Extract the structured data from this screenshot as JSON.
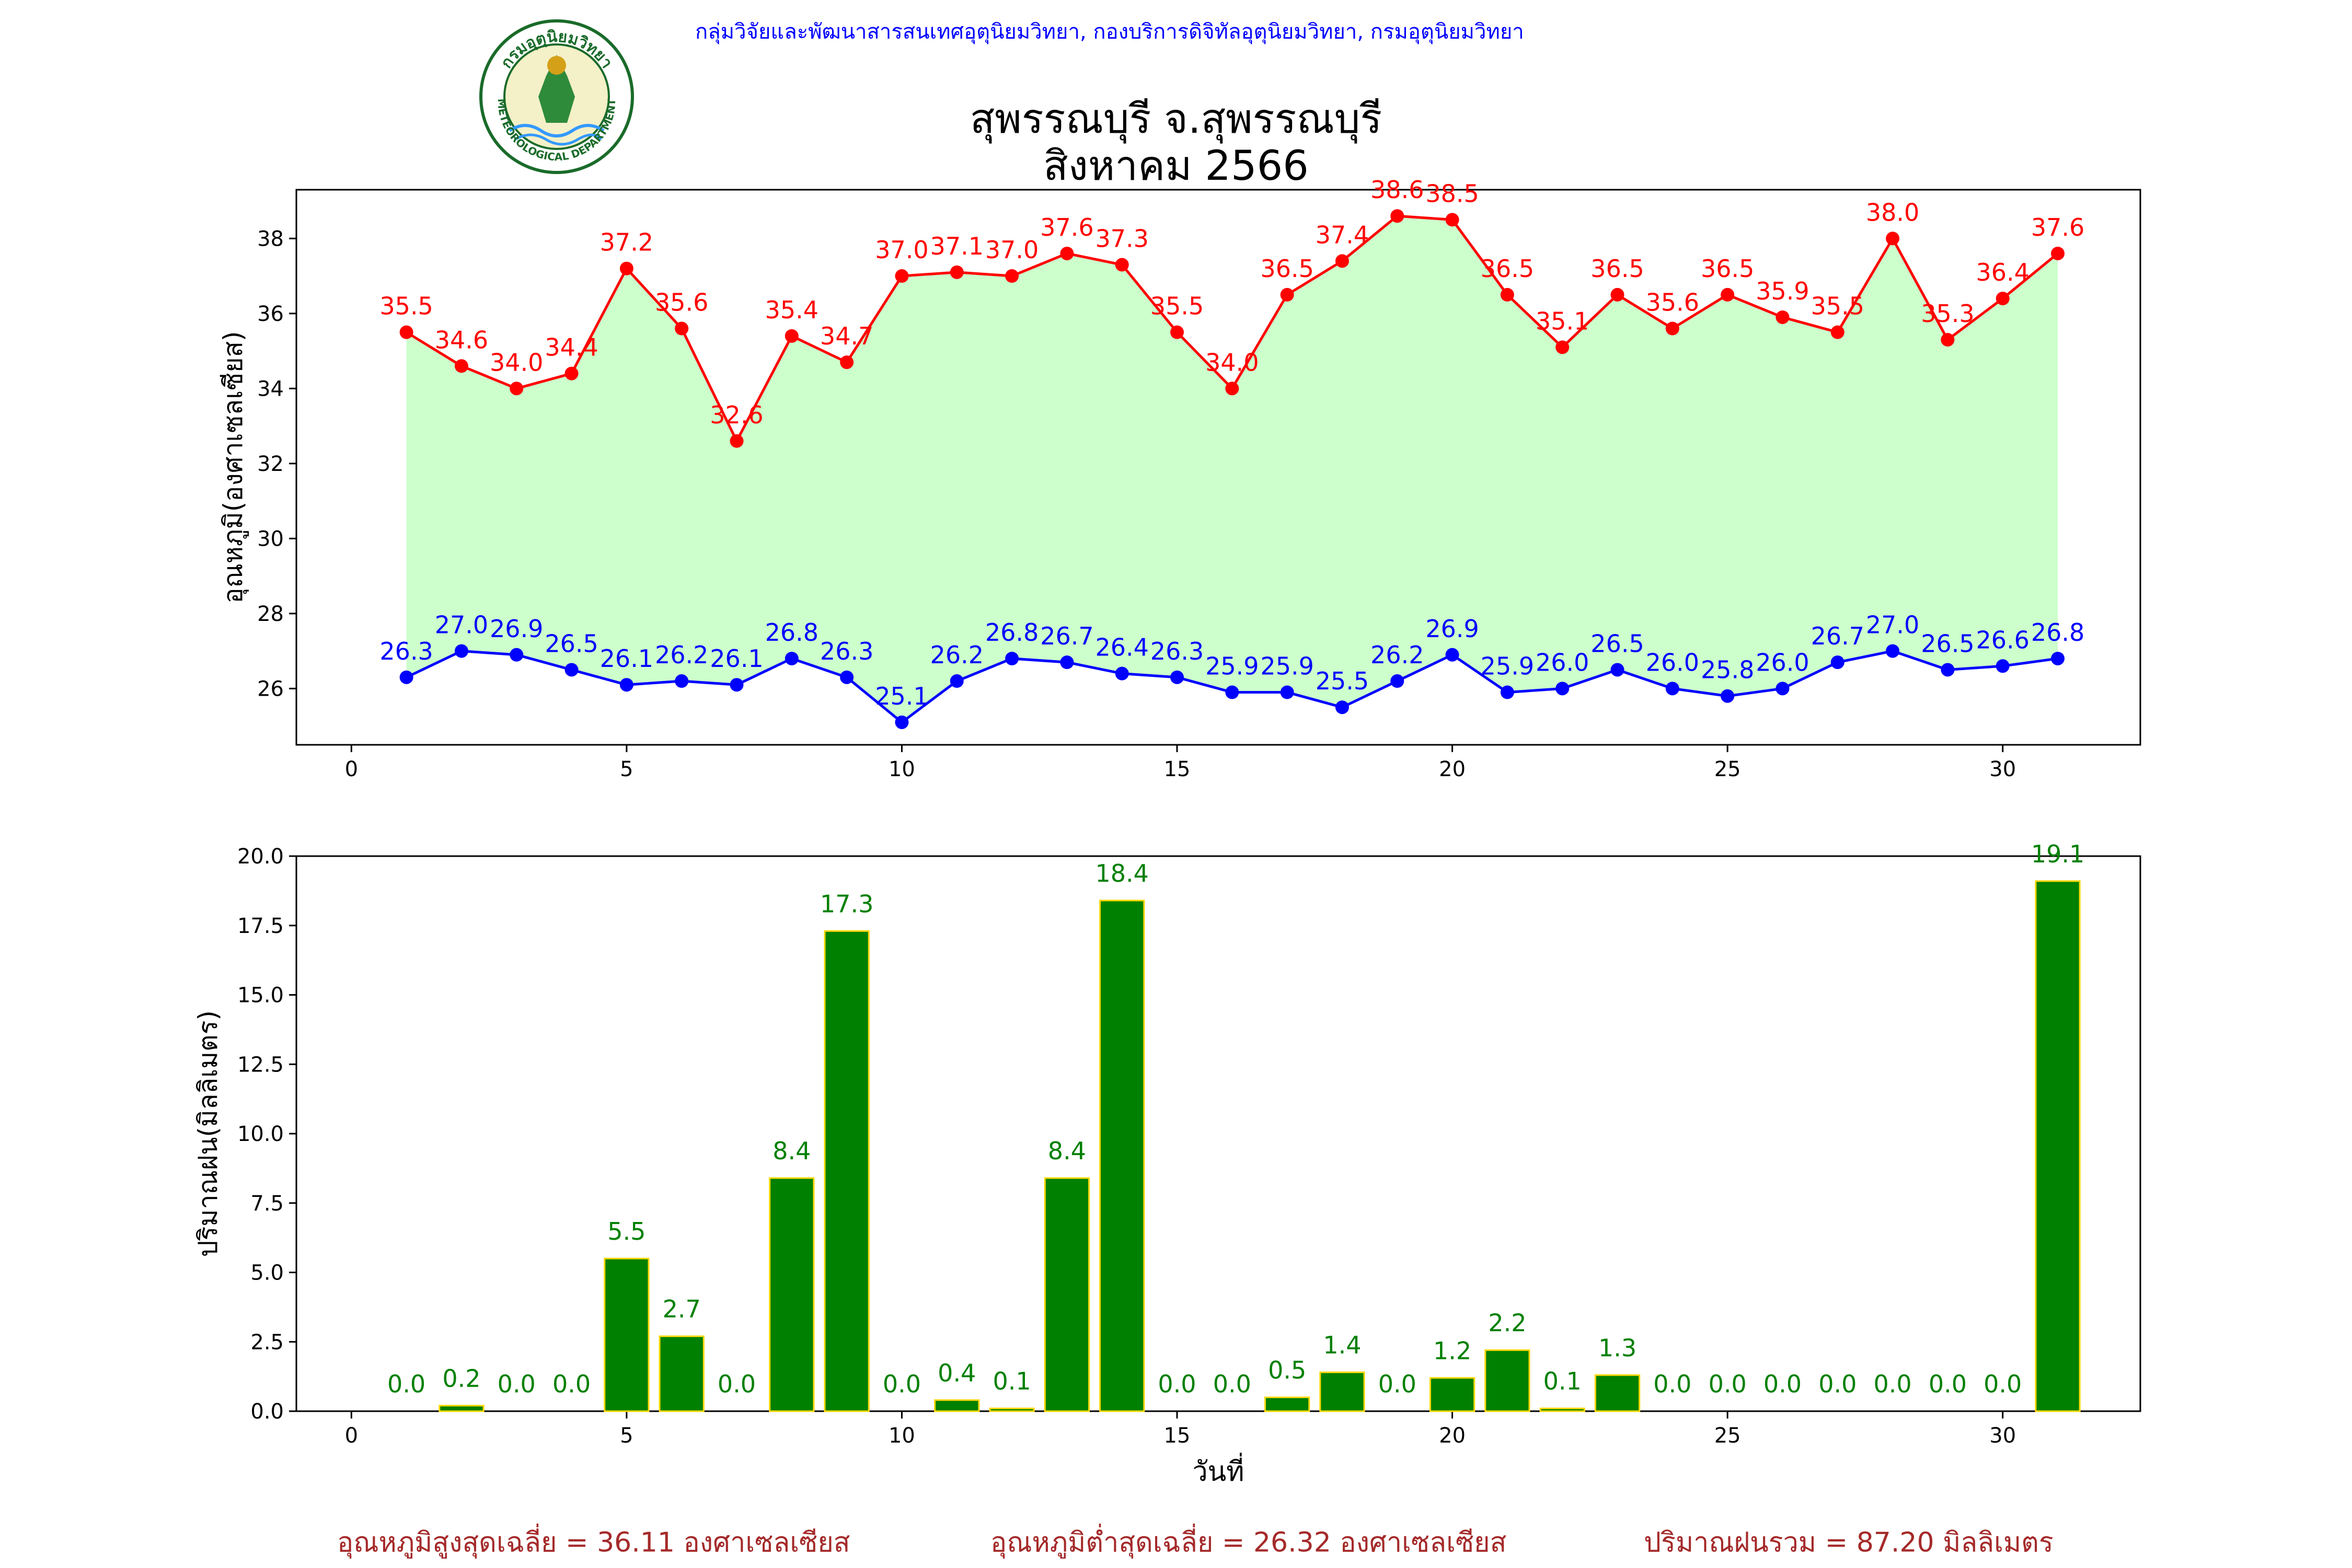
{
  "header": {
    "org_line": "กลุ่มวิจัยและพัฒนาสารสนเทศอุตุนิยมวิทยา, กองบริการดิจิทัลอุตุนิยมวิทยา, กรมอุตุนิยมวิทยา",
    "title_line1": "สุพรรณบุรี จ.สุพรรณบุรี",
    "title_line2": "สิงหาคม 2566",
    "logo": {
      "top_text": "กรมอุตุนิยมวิทยา",
      "bottom_text": "METEOROLOGICAL DEPARTMENT"
    }
  },
  "colors": {
    "max_temp": "#ff0000",
    "min_temp": "#0000ff",
    "fill": "#ccffcc",
    "rain_bar": "#008000",
    "rain_bar_edge": "#ffd700",
    "rain_label": "#008000",
    "stats": "#a52a2a"
  },
  "chart_data": [
    {
      "type": "line",
      "ylabel": "อุณหภูมิ(องศาเซลเซียส)",
      "xlim": [
        -1,
        32.5
      ],
      "ylim": [
        24.5,
        39.3
      ],
      "xticks": [
        0,
        5,
        10,
        15,
        20,
        25,
        30
      ],
      "yticks": [
        26,
        28,
        30,
        32,
        34,
        36,
        38
      ],
      "x": [
        1,
        2,
        3,
        4,
        5,
        6,
        7,
        8,
        9,
        10,
        11,
        12,
        13,
        14,
        15,
        16,
        17,
        18,
        19,
        20,
        21,
        22,
        23,
        24,
        25,
        26,
        27,
        28,
        29,
        30,
        31
      ],
      "series": [
        {
          "key": "max",
          "values": [
            35.5,
            34.6,
            34.0,
            34.4,
            37.2,
            35.6,
            32.6,
            35.4,
            34.7,
            37.0,
            37.1,
            37.0,
            37.6,
            37.3,
            35.5,
            34.0,
            36.5,
            37.4,
            38.6,
            38.5,
            36.5,
            35.1,
            36.5,
            35.6,
            36.5,
            35.9,
            35.5,
            38.0,
            35.3,
            36.4,
            37.6
          ]
        },
        {
          "key": "min",
          "values": [
            26.3,
            27.0,
            26.9,
            26.5,
            26.1,
            26.2,
            26.1,
            26.8,
            26.3,
            25.1,
            26.2,
            26.8,
            26.7,
            26.4,
            26.3,
            25.9,
            25.9,
            25.5,
            26.2,
            26.9,
            25.9,
            26.0,
            26.5,
            26.0,
            25.8,
            26.0,
            26.7,
            27.0,
            26.5,
            26.6,
            26.8
          ]
        }
      ],
      "grid": false
    },
    {
      "type": "bar",
      "xlabel": "วันที่",
      "ylabel": "ปริมาณฝน(มิลลิเมตร)",
      "xlim": [
        -1,
        32.5
      ],
      "ylim": [
        0,
        20
      ],
      "xticks": [
        0,
        5,
        10,
        15,
        20,
        25,
        30
      ],
      "yticks": [
        0.0,
        2.5,
        5.0,
        7.5,
        10.0,
        12.5,
        15.0,
        17.5,
        20.0
      ],
      "x": [
        1,
        2,
        3,
        4,
        5,
        6,
        7,
        8,
        9,
        10,
        11,
        12,
        13,
        14,
        15,
        16,
        17,
        18,
        19,
        20,
        21,
        22,
        23,
        24,
        25,
        26,
        27,
        28,
        29,
        30,
        31
      ],
      "values": [
        0.0,
        0.2,
        0.0,
        0.0,
        5.5,
        2.7,
        0.0,
        8.4,
        17.3,
        0.0,
        0.4,
        0.1,
        8.4,
        18.4,
        0.0,
        0.0,
        0.5,
        1.4,
        0.0,
        1.2,
        2.2,
        0.1,
        1.3,
        0.0,
        0.0,
        0.0,
        0.0,
        0.0,
        0.0,
        0.0,
        19.1
      ],
      "grid": false
    }
  ],
  "stats": {
    "avg_max": "อุณหภูมิสูงสุดเฉลี่ย = 36.11 องศาเซลเซียส",
    "avg_min": "อุณหภูมิต่ำสุดเฉลี่ย = 26.32 องศาเซลเซียส",
    "total_rain": "ปริมาณฝนรวม = 87.20 มิลลิเมตร"
  }
}
